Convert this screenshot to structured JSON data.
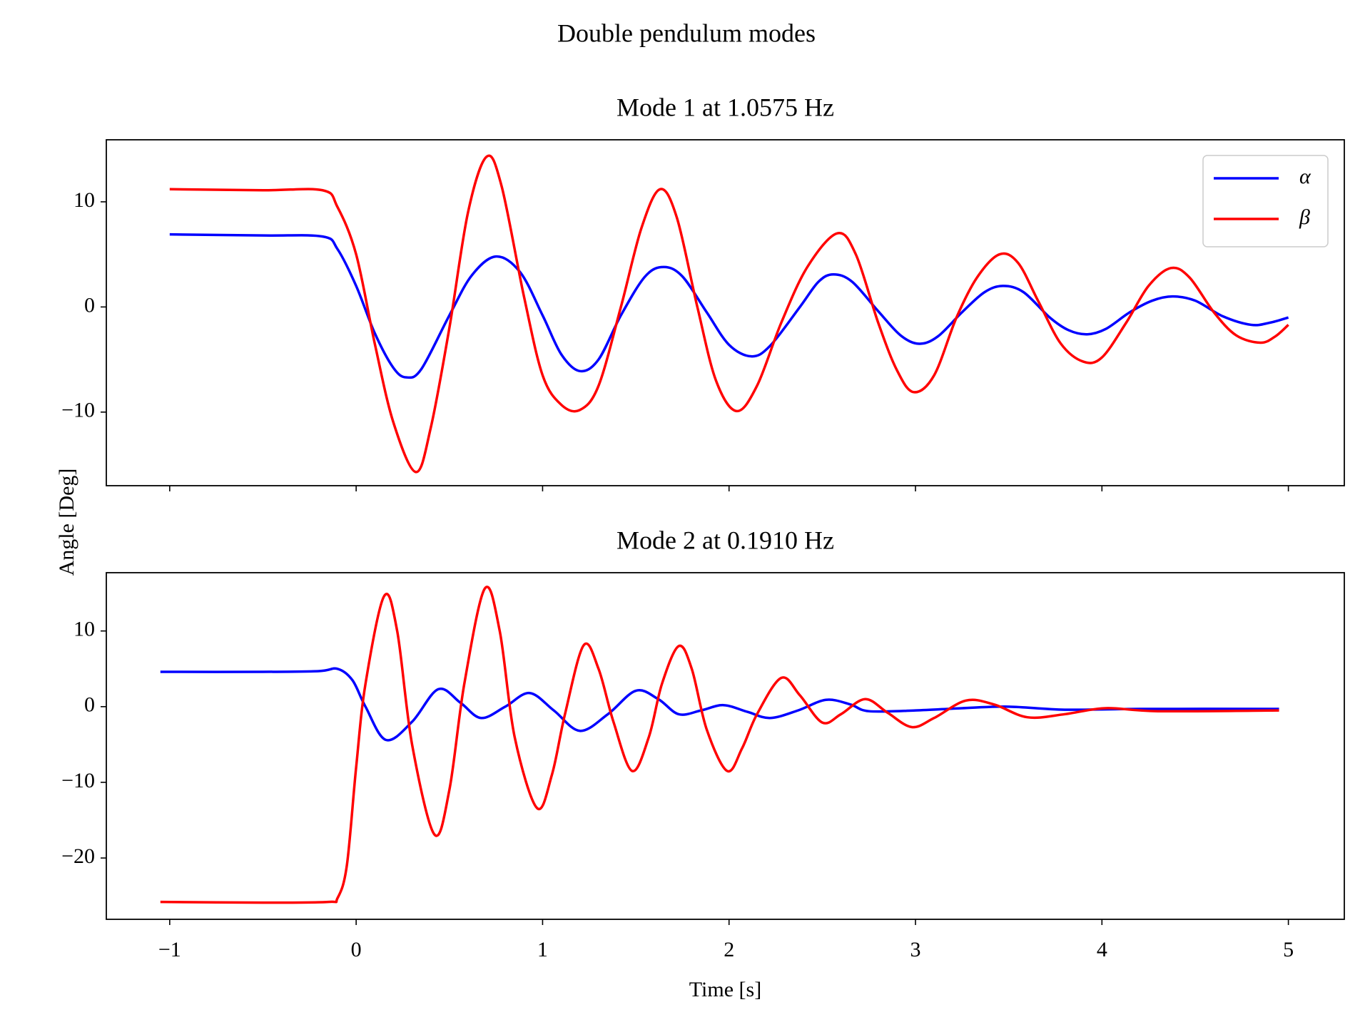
{
  "title": "Double pendulum modes",
  "ylabel": "Angle [Deg]",
  "chart_data": [
    {
      "type": "line",
      "title": "Mode 1 at 1.0575 Hz",
      "xlim": [
        -1.34,
        5.3
      ],
      "xticks": [
        {
          "value": -1,
          "label": "−1"
        },
        0,
        1,
        2,
        3,
        4,
        5
      ],
      "show_xticklabels": false,
      "ylim": [
        -17.0,
        15.9
      ],
      "yticks": [
        {
          "value": -10,
          "label": "−10"
        },
        0,
        10
      ],
      "grid": false,
      "legend": "upper right",
      "series": [
        {
          "name": "α",
          "color": "#0000ff",
          "x": [
            -1.0,
            -0.5,
            -0.18,
            -0.1,
            0.0,
            0.1,
            0.2,
            0.27,
            0.35,
            0.5,
            0.62,
            0.75,
            0.88,
            1.0,
            1.1,
            1.2,
            1.3,
            1.42,
            1.55,
            1.65,
            1.75,
            1.88,
            2.0,
            2.12,
            2.22,
            2.38,
            2.48,
            2.56,
            2.66,
            2.8,
            2.92,
            3.02,
            3.12,
            3.25,
            3.37,
            3.47,
            3.58,
            3.72,
            3.82,
            3.92,
            4.02,
            4.15,
            4.27,
            4.38,
            4.5,
            4.65,
            4.8,
            4.9,
            5.0
          ],
          "values": [
            6.9,
            6.8,
            6.7,
            5.5,
            2.0,
            -2.5,
            -5.8,
            -6.7,
            -5.9,
            -0.8,
            3.0,
            4.8,
            3.3,
            -0.8,
            -4.5,
            -6.1,
            -5.0,
            -0.8,
            2.9,
            3.8,
            2.9,
            -0.5,
            -3.6,
            -4.7,
            -3.7,
            0.0,
            2.4,
            3.1,
            2.4,
            -0.4,
            -2.7,
            -3.5,
            -2.8,
            -0.5,
            1.4,
            2.0,
            1.4,
            -1.0,
            -2.2,
            -2.6,
            -2.1,
            -0.5,
            0.6,
            1.0,
            0.6,
            -0.9,
            -1.7,
            -1.5,
            -1.0
          ]
        },
        {
          "name": "β",
          "color": "#ff0000",
          "x": [
            -1.0,
            -0.5,
            -0.18,
            -0.1,
            0.0,
            0.1,
            0.2,
            0.32,
            0.4,
            0.5,
            0.6,
            0.7,
            0.78,
            0.9,
            1.0,
            1.1,
            1.2,
            1.3,
            1.42,
            1.53,
            1.63,
            1.72,
            1.83,
            1.93,
            2.04,
            2.15,
            2.28,
            2.42,
            2.58,
            2.68,
            2.8,
            2.9,
            2.99,
            3.1,
            3.22,
            3.33,
            3.45,
            3.55,
            3.66,
            3.78,
            3.9,
            4.0,
            4.13,
            4.25,
            4.37,
            4.47,
            4.6,
            4.72,
            4.85,
            4.93,
            5.0
          ],
          "values": [
            11.2,
            11.1,
            11.1,
            9.5,
            5.0,
            -3.5,
            -11.0,
            -15.7,
            -11.5,
            -2.0,
            9.0,
            14.3,
            11.5,
            1.0,
            -6.5,
            -9.3,
            -9.8,
            -7.5,
            0.0,
            7.5,
            11.2,
            8.5,
            0.0,
            -7.0,
            -9.9,
            -7.5,
            -1.5,
            3.8,
            7.0,
            5.0,
            -1.5,
            -6.0,
            -8.1,
            -6.5,
            -1.0,
            2.8,
            5.0,
            4.2,
            0.5,
            -3.5,
            -5.2,
            -4.8,
            -1.5,
            2.0,
            3.7,
            2.8,
            -0.5,
            -2.7,
            -3.4,
            -2.8,
            -1.7
          ]
        }
      ]
    },
    {
      "type": "line",
      "title": "Mode 2 at 0.1910 Hz",
      "xlabel": "Time [s]",
      "xlim": [
        -1.34,
        5.3
      ],
      "xticks": [
        {
          "value": -1,
          "label": "−1"
        },
        0,
        1,
        2,
        3,
        4,
        5
      ],
      "show_xticklabels": true,
      "ylim": [
        -28.1,
        17.7
      ],
      "yticks": [
        {
          "value": -20,
          "label": "−20"
        },
        {
          "value": -10,
          "label": "−10"
        },
        0,
        10
      ],
      "grid": false,
      "series": [
        {
          "name": "α",
          "color": "#0000ff",
          "x": [
            -1.05,
            -0.5,
            -0.2,
            -0.1,
            -0.02,
            0.05,
            0.16,
            0.3,
            0.44,
            0.56,
            0.67,
            0.8,
            0.93,
            1.06,
            1.2,
            1.35,
            1.5,
            1.62,
            1.73,
            1.85,
            1.97,
            2.1,
            2.22,
            2.37,
            2.52,
            2.65,
            2.75,
            3.0,
            3.25,
            3.5,
            3.8,
            4.2,
            4.95
          ],
          "values": [
            4.6,
            4.6,
            4.7,
            5.0,
            3.5,
            0.0,
            -4.4,
            -2.0,
            2.3,
            0.5,
            -1.5,
            0.0,
            1.8,
            -0.5,
            -3.2,
            -1.0,
            2.1,
            1.0,
            -1.0,
            -0.5,
            0.2,
            -0.7,
            -1.5,
            -0.5,
            0.9,
            0.3,
            -0.6,
            -0.5,
            -0.2,
            0.0,
            -0.4,
            -0.3,
            -0.3
          ]
        },
        {
          "name": "β",
          "color": "#ff0000",
          "x": [
            -1.05,
            -0.5,
            -0.15,
            -0.1,
            -0.05,
            0.0,
            0.05,
            0.15,
            0.22,
            0.3,
            0.42,
            0.5,
            0.58,
            0.69,
            0.77,
            0.85,
            0.97,
            1.05,
            1.12,
            1.22,
            1.3,
            1.38,
            1.48,
            1.57,
            1.64,
            1.73,
            1.8,
            1.88,
            1.99,
            2.07,
            2.15,
            2.28,
            2.38,
            2.5,
            2.6,
            2.73,
            2.85,
            2.98,
            3.1,
            3.27,
            3.42,
            3.6,
            3.8,
            4.02,
            4.3,
            4.95
          ],
          "values": [
            -25.8,
            -25.9,
            -25.8,
            -25.3,
            -21.0,
            -8.0,
            3.0,
            14.6,
            10.0,
            -5.0,
            -16.9,
            -11.0,
            3.0,
            15.6,
            10.0,
            -4.0,
            -13.4,
            -9.0,
            -1.0,
            8.1,
            5.0,
            -2.0,
            -8.5,
            -4.0,
            3.0,
            8.0,
            5.0,
            -3.0,
            -8.5,
            -5.5,
            -1.0,
            3.8,
            1.5,
            -2.1,
            -1.0,
            1.0,
            -0.8,
            -2.7,
            -1.5,
            0.8,
            0.3,
            -1.4,
            -1.0,
            -0.2,
            -0.6,
            -0.5
          ]
        }
      ]
    }
  ]
}
